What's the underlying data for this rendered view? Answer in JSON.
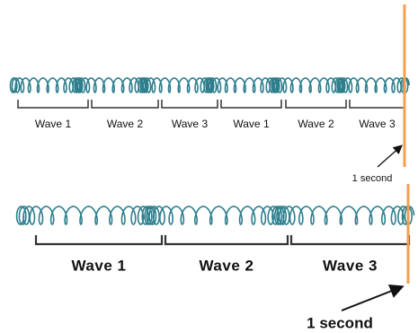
{
  "top": {
    "waves": [
      "Wave 1",
      "Wave 2",
      "Wave 3",
      "Wave 1",
      "Wave 2",
      "Wave 3"
    ],
    "time_label": "1 second"
  },
  "bottom": {
    "waves": [
      "Wave 1",
      "Wave 2",
      "Wave 3"
    ],
    "time_label": "1 second"
  }
}
